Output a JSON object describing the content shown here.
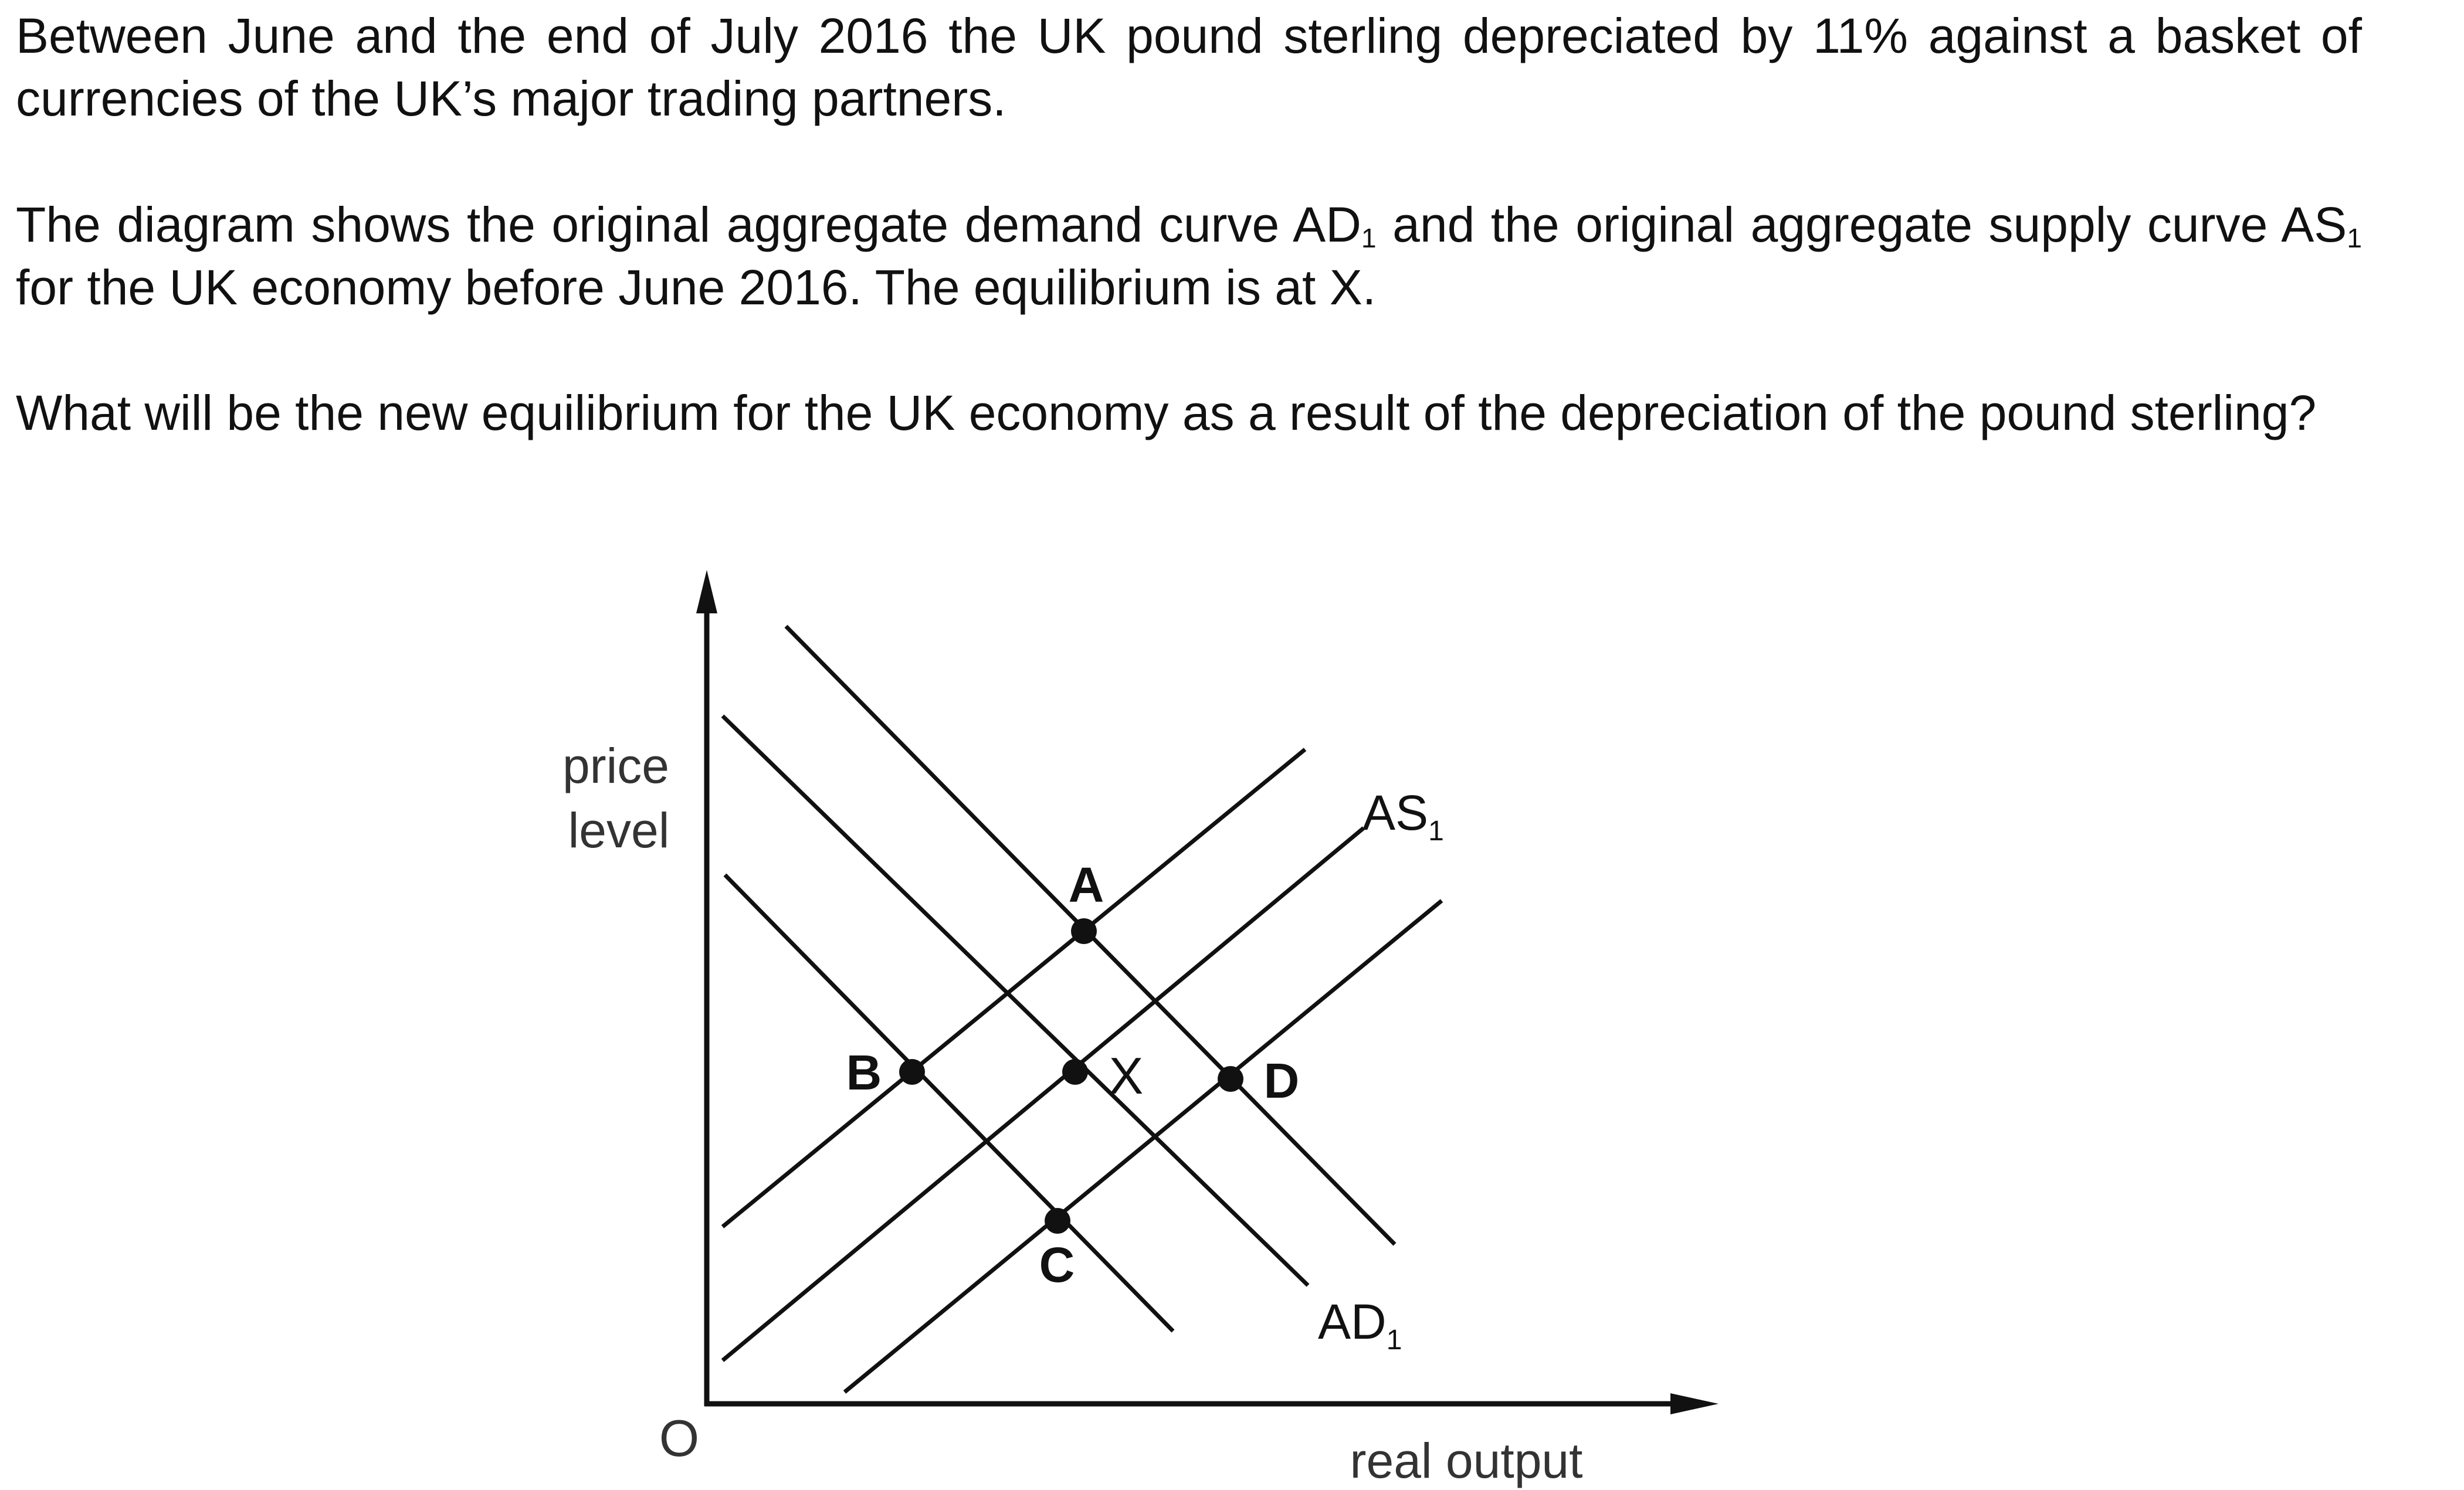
{
  "question": {
    "paragraph_1": "Between June and the end of July 2016 the UK pound sterling depreciated by 11% against a basket of currencies of the UK’s major trading partners.",
    "paragraph_2": {
      "part_a": "The diagram shows the original aggregate demand curve AD",
      "sub_a": "1",
      "part_b": " and the original aggregate supply curve AS",
      "sub_b": "1",
      "part_c": " for the UK economy before June 2016. The equilibrium is at X."
    },
    "paragraph_3": "What will be the new equilibrium for the UK economy as a result of the depreciation of the pound sterling?"
  },
  "diagram": {
    "y_axis_label": [
      "price",
      "level"
    ],
    "x_axis_label": "real output",
    "origin_label": "O",
    "as_label": "AS",
    "as_label_sub": "1",
    "ad_label": "AD",
    "ad_label_sub": "1",
    "points": {
      "A": "A",
      "B": "B",
      "C": "C",
      "D": "D",
      "X": "X"
    }
  }
}
